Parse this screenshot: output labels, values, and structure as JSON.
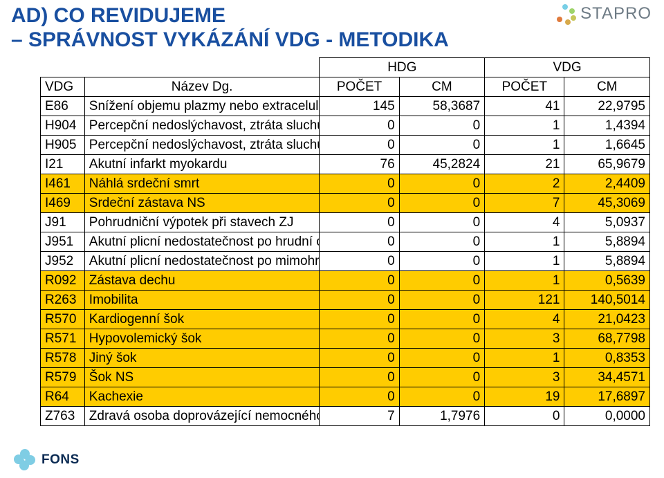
{
  "title": {
    "line1": "AD) CO REVIDUJEME",
    "line2": "– SPRÁVNOST VYKÁZÁNÍ VDG - METODIKA",
    "color": "#194fa0"
  },
  "brand": {
    "name": "STAPRO",
    "text_color": "#6e7b85",
    "dots": [
      "#78cfe6",
      "#9ed46b",
      "#c7c75a",
      "#d7a94a",
      "#e07a3c"
    ]
  },
  "footer_brand": {
    "name": "FONS",
    "petal_color": "#7fcde4",
    "text_color": "#0a2a52"
  },
  "table": {
    "header_groups": [
      {
        "label": "HDG",
        "span": 2
      },
      {
        "label": "VDG",
        "span": 2
      }
    ],
    "left_headers": {
      "code": "VDG",
      "name": "Název Dg."
    },
    "col_headers": [
      "POČET",
      "CM",
      "POČET",
      "CM"
    ],
    "highlight_color": "#ffcc00",
    "rows": [
      {
        "code": "E86",
        "name": "Snížení objemu plazmy nebo extracelulární tekutiny",
        "n": [
          145,
          "58,3687",
          41,
          "22,9795"
        ],
        "hl": false
      },
      {
        "code": "H904",
        "name": "Percepční nedoslýchavost, ztráta sluchu",
        "n": [
          0,
          0,
          1,
          "1,4394"
        ],
        "hl": false
      },
      {
        "code": "H905",
        "name": "Percepční nedoslýchavost, ztráta sluchu",
        "n": [
          0,
          0,
          1,
          "1,6645"
        ],
        "hl": false
      },
      {
        "code": "I21",
        "name": "Akutní infarkt myokardu",
        "n": [
          76,
          "45,2824",
          21,
          "65,9679"
        ],
        "hl": false
      },
      {
        "code": "I461",
        "name": "Náhlá srdeční smrt",
        "n": [
          0,
          0,
          2,
          "2,4409"
        ],
        "hl": true
      },
      {
        "code": "I469",
        "name": "Srdeční zástava NS",
        "n": [
          0,
          0,
          7,
          "45,3069"
        ],
        "hl": true
      },
      {
        "code": "J91",
        "name": "Pohrudniční výpotek při stavech ZJ",
        "n": [
          0,
          0,
          4,
          "5,0937"
        ],
        "hl": false
      },
      {
        "code": "J951",
        "name": "Akutní plicní nedostatečnost po hrudní operaci",
        "n": [
          0,
          0,
          1,
          "5,8894"
        ],
        "hl": false
      },
      {
        "code": "J952",
        "name": "Akutní plicní nedostatečnost po mimohrudní operaci",
        "n": [
          0,
          0,
          1,
          "5,8894"
        ],
        "hl": false
      },
      {
        "code": "R092",
        "name": "Zástava dechu",
        "n": [
          0,
          0,
          1,
          "0,5639"
        ],
        "hl": true
      },
      {
        "code": "R263",
        "name": "Imobilita",
        "n": [
          0,
          0,
          121,
          "140,5014"
        ],
        "hl": true
      },
      {
        "code": "R570",
        "name": "Kardiogenní šok",
        "n": [
          0,
          0,
          4,
          "21,0423"
        ],
        "hl": true
      },
      {
        "code": "R571",
        "name": "Hypovolemický šok",
        "n": [
          0,
          0,
          3,
          "68,7798"
        ],
        "hl": true
      },
      {
        "code": "R578",
        "name": "Jiný šok",
        "n": [
          0,
          0,
          1,
          "0,8353"
        ],
        "hl": true
      },
      {
        "code": "R579",
        "name": "Šok NS",
        "n": [
          0,
          0,
          3,
          "34,4571"
        ],
        "hl": true
      },
      {
        "code": "R64",
        "name": "Kachexie",
        "n": [
          0,
          0,
          19,
          "17,6897"
        ],
        "hl": true
      },
      {
        "code": "Z763",
        "name": "Zdravá osoba doprovázející nemocného",
        "n": [
          7,
          "1,7976",
          0,
          "0,0000"
        ],
        "hl": false
      }
    ]
  }
}
